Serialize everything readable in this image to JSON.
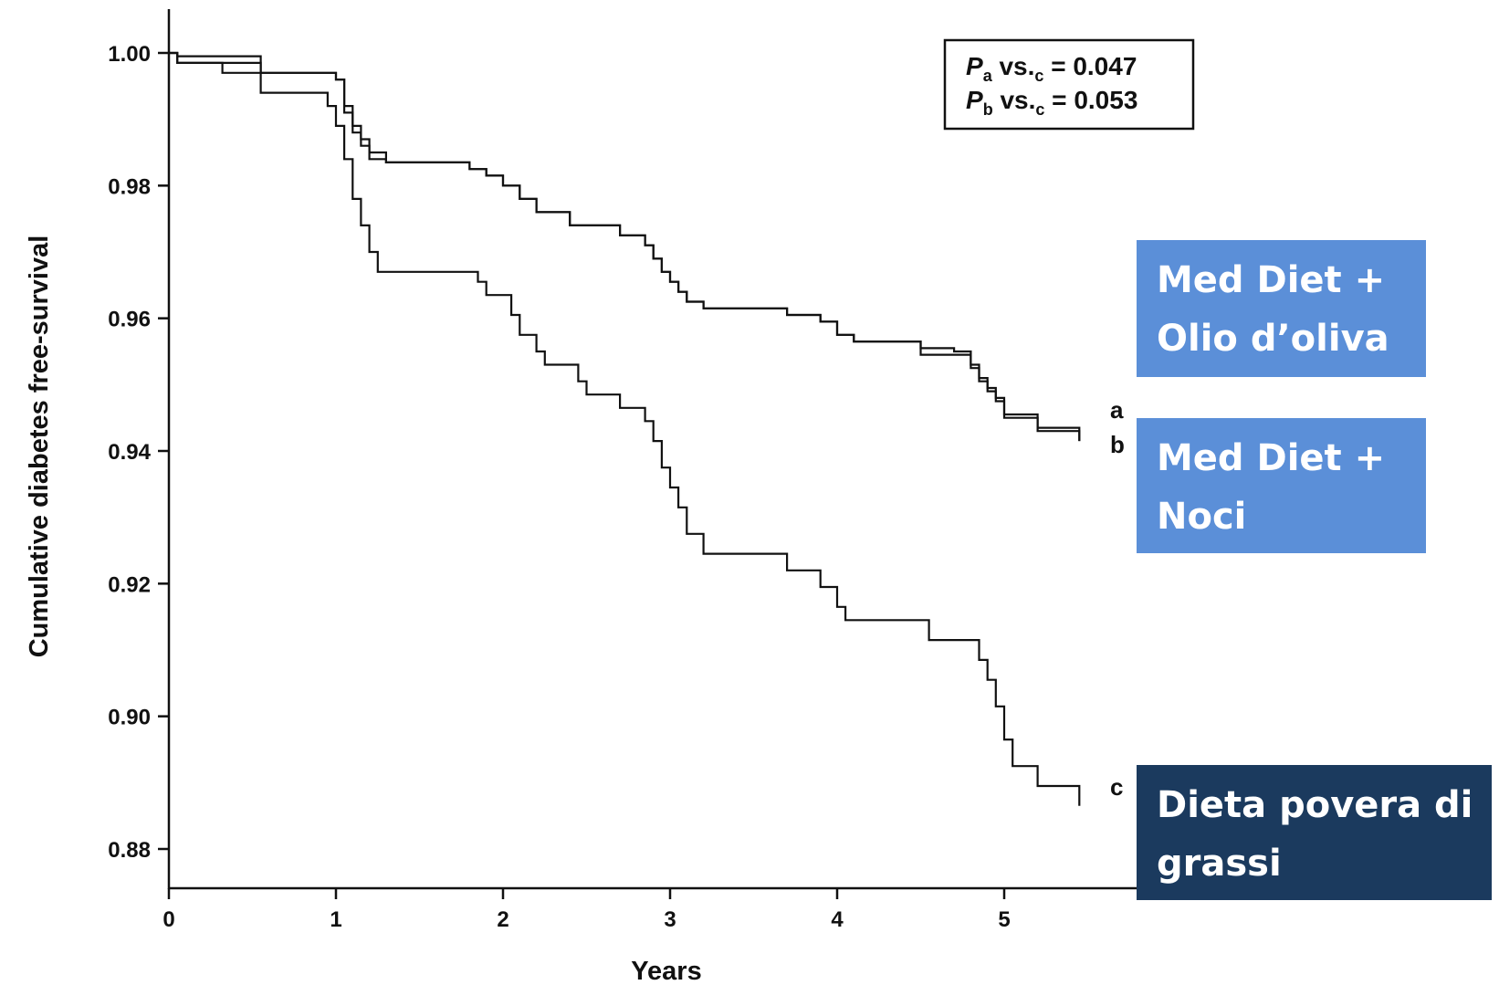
{
  "chart_data": {
    "type": "line",
    "xlabel": "Years",
    "ylabel": "Cumulative diabetes free-survival",
    "xlim": [
      0,
      5.75
    ],
    "ylim": [
      0.873,
      1.007
    ],
    "xticks": [
      "0",
      "1",
      "2",
      "3",
      "4",
      "5"
    ],
    "yticks": [
      "1.00",
      "0.98",
      "0.96",
      "0.94",
      "0.92",
      "0.90",
      "0.88"
    ],
    "step": true,
    "grid": false,
    "series": [
      {
        "name": "a",
        "values": [
          [
            0,
            1.0
          ],
          [
            0.05,
            0.9995
          ],
          [
            0.55,
            0.9995
          ],
          [
            0.55,
            0.997
          ],
          [
            0.95,
            0.997
          ],
          [
            1.0,
            0.996
          ],
          [
            1.05,
            0.992
          ],
          [
            1.1,
            0.989
          ],
          [
            1.15,
            0.987
          ],
          [
            1.2,
            0.985
          ],
          [
            1.3,
            0.9835
          ],
          [
            1.75,
            0.9835
          ],
          [
            1.8,
            0.9825
          ],
          [
            1.9,
            0.9815
          ],
          [
            2.0,
            0.98
          ],
          [
            2.1,
            0.978
          ],
          [
            2.2,
            0.976
          ],
          [
            2.4,
            0.974
          ],
          [
            2.7,
            0.9725
          ],
          [
            2.85,
            0.971
          ],
          [
            2.9,
            0.969
          ],
          [
            2.95,
            0.967
          ],
          [
            3.0,
            0.9655
          ],
          [
            3.05,
            0.964
          ],
          [
            3.1,
            0.9625
          ],
          [
            3.2,
            0.9615
          ],
          [
            3.4,
            0.9615
          ],
          [
            3.7,
            0.9605
          ],
          [
            3.9,
            0.9595
          ],
          [
            4.0,
            0.9575
          ],
          [
            4.1,
            0.9565
          ],
          [
            4.5,
            0.9555
          ],
          [
            4.7,
            0.955
          ],
          [
            4.8,
            0.953
          ],
          [
            4.85,
            0.951
          ],
          [
            4.9,
            0.9495
          ],
          [
            4.95,
            0.948
          ],
          [
            5.0,
            0.9455
          ],
          [
            5.2,
            0.9435
          ],
          [
            5.45,
            0.943
          ],
          [
            5.45,
            0.9415
          ]
        ]
      },
      {
        "name": "b",
        "values": [
          [
            0,
            1.0
          ],
          [
            0.05,
            0.9985
          ],
          [
            0.3,
            0.9985
          ],
          [
            0.32,
            0.997
          ],
          [
            0.5,
            0.997
          ],
          [
            0.55,
            0.997
          ],
          [
            1.0,
            0.996
          ],
          [
            1.05,
            0.991
          ],
          [
            1.1,
            0.988
          ],
          [
            1.15,
            0.986
          ],
          [
            1.2,
            0.984
          ],
          [
            1.3,
            0.9835
          ],
          [
            1.75,
            0.9835
          ],
          [
            1.8,
            0.9825
          ],
          [
            1.9,
            0.9815
          ],
          [
            2.0,
            0.98
          ],
          [
            2.1,
            0.978
          ],
          [
            2.2,
            0.976
          ],
          [
            2.4,
            0.974
          ],
          [
            2.7,
            0.9725
          ],
          [
            2.85,
            0.971
          ],
          [
            2.9,
            0.969
          ],
          [
            2.95,
            0.967
          ],
          [
            3.0,
            0.9655
          ],
          [
            3.05,
            0.964
          ],
          [
            3.1,
            0.9625
          ],
          [
            3.2,
            0.9615
          ],
          [
            3.4,
            0.9615
          ],
          [
            3.7,
            0.9605
          ],
          [
            3.9,
            0.9595
          ],
          [
            4.0,
            0.9575
          ],
          [
            4.1,
            0.9565
          ],
          [
            4.5,
            0.9545
          ],
          [
            4.7,
            0.9545
          ],
          [
            4.8,
            0.9525
          ],
          [
            4.85,
            0.9505
          ],
          [
            4.9,
            0.949
          ],
          [
            4.95,
            0.9475
          ],
          [
            5.0,
            0.945
          ],
          [
            5.2,
            0.943
          ],
          [
            5.45,
            0.9425
          ],
          [
            5.45,
            0.9415
          ]
        ]
      },
      {
        "name": "c",
        "values": [
          [
            0,
            1.0
          ],
          [
            0.05,
            0.9985
          ],
          [
            0.55,
            0.9985
          ],
          [
            0.55,
            0.994
          ],
          [
            0.9,
            0.994
          ],
          [
            0.95,
            0.992
          ],
          [
            1.0,
            0.989
          ],
          [
            1.05,
            0.984
          ],
          [
            1.1,
            0.978
          ],
          [
            1.15,
            0.974
          ],
          [
            1.2,
            0.97
          ],
          [
            1.25,
            0.967
          ],
          [
            1.8,
            0.967
          ],
          [
            1.85,
            0.9655
          ],
          [
            1.9,
            0.9635
          ],
          [
            2.05,
            0.9605
          ],
          [
            2.1,
            0.9575
          ],
          [
            2.2,
            0.955
          ],
          [
            2.25,
            0.953
          ],
          [
            2.45,
            0.9505
          ],
          [
            2.5,
            0.9485
          ],
          [
            2.7,
            0.9465
          ],
          [
            2.85,
            0.9445
          ],
          [
            2.9,
            0.9415
          ],
          [
            2.95,
            0.9375
          ],
          [
            3.0,
            0.9345
          ],
          [
            3.05,
            0.9315
          ],
          [
            3.1,
            0.9275
          ],
          [
            3.2,
            0.9245
          ],
          [
            3.7,
            0.922
          ],
          [
            3.9,
            0.9195
          ],
          [
            4.0,
            0.9165
          ],
          [
            4.05,
            0.9145
          ],
          [
            4.5,
            0.9145
          ],
          [
            4.55,
            0.9115
          ],
          [
            4.8,
            0.9115
          ],
          [
            4.85,
            0.9085
          ],
          [
            4.9,
            0.9055
          ],
          [
            4.95,
            0.9015
          ],
          [
            5.0,
            0.8965
          ],
          [
            5.05,
            0.8925
          ],
          [
            5.2,
            0.8895
          ],
          [
            5.45,
            0.8895
          ],
          [
            5.45,
            0.8865
          ]
        ]
      }
    ]
  },
  "p_values": [
    {
      "p": "P",
      "sub1": "a",
      "vs": " vs.",
      "sub2": "c",
      "eq": " = 0.047"
    },
    {
      "p": "P",
      "sub1": "b",
      "vs": " vs.",
      "sub2": "c",
      "eq": " = 0.053"
    }
  ],
  "callouts": {
    "a": {
      "lines": [
        "Med Diet +",
        "Olio d’oliva"
      ],
      "color": "#5b8fd8"
    },
    "b": {
      "lines": [
        "Med Diet +",
        "Noci"
      ],
      "color": "#5b8fd8"
    },
    "c": {
      "lines": [
        "Dieta povera di",
        "grassi"
      ],
      "color": "#1b3a5e"
    }
  }
}
